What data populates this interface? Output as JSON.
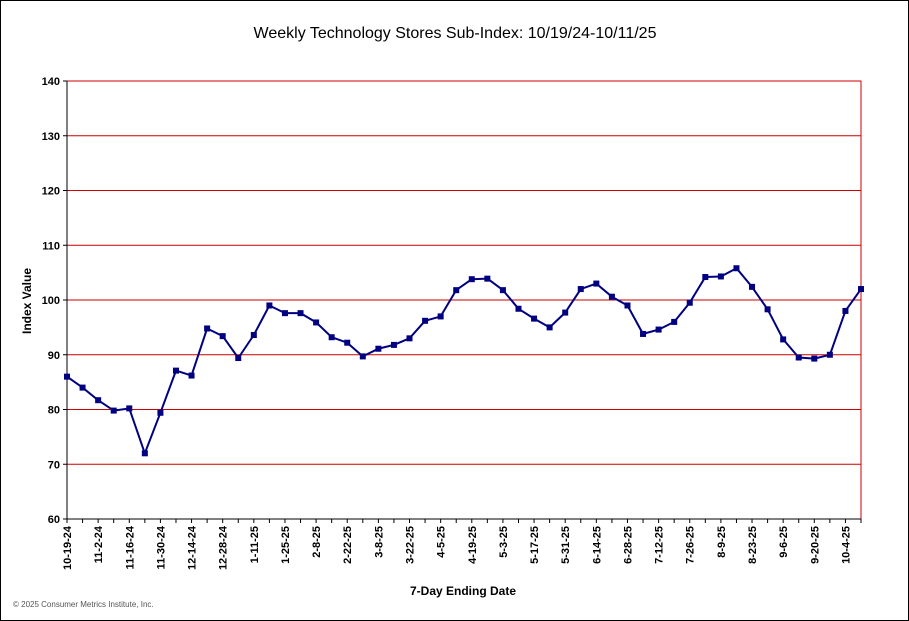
{
  "chart_data": {
    "type": "line",
    "title": "Weekly Technology Stores Sub-Index: 10/19/24-10/11/25",
    "xlabel": "7-Day Ending Date",
    "ylabel": "Index Value",
    "ylim": [
      60,
      140
    ],
    "yticks": [
      60,
      70,
      80,
      90,
      100,
      110,
      120,
      130,
      140
    ],
    "grid": true,
    "legend": "none",
    "colors": {
      "line": "#000080",
      "marker": "#000080",
      "gridline": "#cc0000",
      "plot_border": "#cc0000"
    },
    "x_tick_labels": [
      "10-19-24",
      "11-2-24",
      "11-16-24",
      "11-30-24",
      "12-14-24",
      "12-28-24",
      "1-11-25",
      "1-25-25",
      "2-8-25",
      "2-22-25",
      "3-8-25",
      "3-22-25",
      "4-5-25",
      "4-19-25",
      "5-3-25",
      "5-17-25",
      "5-31-25",
      "6-14-25",
      "6-28-25",
      "7-12-25",
      "7-26-25",
      "8-9-25",
      "8-23-25",
      "9-6-25",
      "9-20-25",
      "10-4-25"
    ],
    "x": [
      "10-19-24",
      "10-26-24",
      "11-2-24",
      "11-9-24",
      "11-16-24",
      "11-23-24",
      "11-30-24",
      "12-7-24",
      "12-14-24",
      "12-21-24",
      "12-28-24",
      "1-4-25",
      "1-11-25",
      "1-18-25",
      "1-25-25",
      "2-1-25",
      "2-8-25",
      "2-15-25",
      "2-22-25",
      "3-1-25",
      "3-8-25",
      "3-15-25",
      "3-22-25",
      "3-29-25",
      "4-5-25",
      "4-12-25",
      "4-19-25",
      "4-26-25",
      "5-3-25",
      "5-10-25",
      "5-17-25",
      "5-24-25",
      "5-31-25",
      "6-7-25",
      "6-14-25",
      "6-21-25",
      "6-28-25",
      "7-5-25",
      "7-12-25",
      "7-19-25",
      "7-26-25",
      "8-2-25",
      "8-9-25",
      "8-16-25",
      "8-23-25",
      "8-30-25",
      "9-6-25",
      "9-13-25",
      "9-20-25",
      "9-27-25",
      "10-4-25",
      "10-11-25"
    ],
    "series": [
      {
        "values": [
          86.0,
          84.0,
          81.7,
          79.8,
          80.2,
          72.0,
          79.4,
          87.1,
          86.2,
          94.8,
          93.4,
          89.4,
          93.6,
          99.0,
          97.6,
          97.6,
          95.9,
          93.2,
          92.2,
          89.7,
          91.1,
          91.8,
          93.0,
          96.2,
          97.0,
          101.8,
          103.8,
          103.9,
          101.8,
          98.4,
          96.6,
          95.0,
          97.7,
          102.0,
          103.0,
          100.6,
          99.0,
          93.8,
          94.6,
          96.0,
          99.5,
          104.2,
          104.3,
          105.8,
          102.4,
          98.3,
          92.8,
          89.5,
          89.3,
          90.0,
          98.0,
          102.0
        ]
      }
    ]
  },
  "footer": {
    "copyright": "© 2025 Consumer Metrics Institute, Inc."
  }
}
